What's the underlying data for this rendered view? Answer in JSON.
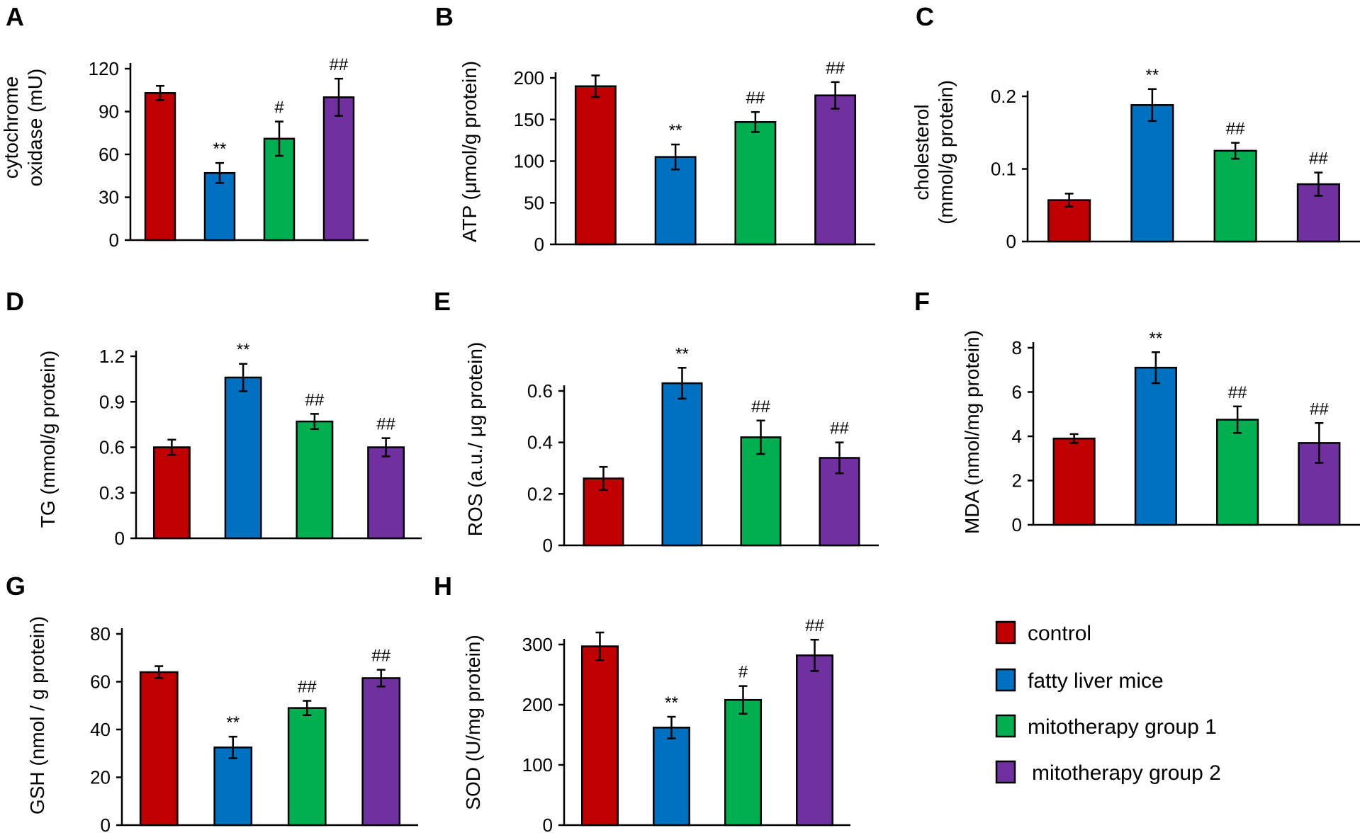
{
  "colors": {
    "control": "#c00000",
    "fatty_liver_mice": "#0070c0",
    "mitotherapy_group_1": "#00b050",
    "mitotherapy_group_2": "#7030a0"
  },
  "legend": {
    "entries": [
      {
        "label": "control",
        "color": "#c00000"
      },
      {
        "label": "fatty liver mice",
        "color": "#0070c0"
      },
      {
        "label": "mitotherapy group  1",
        "color": "#00b050"
      },
      {
        "label": "mitotherapy group  2",
        "color": "#7030a0"
      }
    ]
  },
  "chart_data": [
    {
      "panel": "A",
      "type": "bar",
      "categories": [
        "control",
        "fatty liver mice",
        "mitotherapy group 1",
        "mitotherapy group 2"
      ],
      "ylabel": [
        "cytochrome",
        "oxidase (mU)"
      ],
      "yticks": [
        "0",
        "30",
        "60",
        "90",
        "120"
      ],
      "ylim": [
        0,
        120
      ],
      "values": [
        103,
        47,
        71,
        100
      ],
      "errors": [
        5,
        7,
        12,
        13
      ],
      "significance": [
        "",
        "**",
        "#",
        "##"
      ]
    },
    {
      "panel": "B",
      "type": "bar",
      "categories": [
        "control",
        "fatty liver mice",
        "mitotherapy group 1",
        "mitotherapy group 2"
      ],
      "ylabel": [
        "ATP (μmol/g  protein)"
      ],
      "yticks": [
        "0",
        "50",
        "100",
        "150",
        "200"
      ],
      "ylim": [
        0,
        200
      ],
      "values": [
        190,
        105,
        147,
        179
      ],
      "errors": [
        13,
        15,
        12,
        16
      ],
      "significance": [
        "",
        "**",
        "##",
        "##"
      ]
    },
    {
      "panel": "C",
      "type": "bar",
      "categories": [
        "control",
        "fatty liver mice",
        "mitotherapy group 1",
        "mitotherapy group 2"
      ],
      "ylabel": [
        "cholesterol",
        "(mmol/g  protein)"
      ],
      "yticks": [
        "0",
        "0.1",
        "0.2"
      ],
      "ylim": [
        0,
        0.2
      ],
      "values": [
        0.057,
        0.188,
        0.125,
        0.079
      ],
      "errors": [
        0.009,
        0.022,
        0.011,
        0.016
      ],
      "significance": [
        "",
        "**",
        "##",
        "##"
      ]
    },
    {
      "panel": "D",
      "type": "bar",
      "categories": [
        "control",
        "fatty liver mice",
        "mitotherapy group 1",
        "mitotherapy group 2"
      ],
      "ylabel": [
        "TG (mmol/g  protein)"
      ],
      "yticks": [
        "0",
        "0.3",
        "0.6",
        "0.9",
        "1.2"
      ],
      "ylim": [
        0,
        1.2
      ],
      "values": [
        0.6,
        1.06,
        0.77,
        0.6
      ],
      "errors": [
        0.05,
        0.09,
        0.05,
        0.06
      ],
      "significance": [
        "",
        "**",
        "##",
        "##"
      ]
    },
    {
      "panel": "E",
      "type": "bar",
      "categories": [
        "control",
        "fatty liver mice",
        "mitotherapy group 1",
        "mitotherapy group 2"
      ],
      "ylabel": [
        "ROS (a.u./ μg protein)"
      ],
      "yticks": [
        "0",
        "0.2",
        "0.4",
        "0.6"
      ],
      "ylim": [
        0,
        0.6
      ],
      "values": [
        0.26,
        0.63,
        0.42,
        0.34
      ],
      "errors": [
        0.045,
        0.06,
        0.065,
        0.06
      ],
      "significance": [
        "",
        "**",
        "##",
        "##"
      ]
    },
    {
      "panel": "F",
      "type": "bar",
      "categories": [
        "control",
        "fatty liver mice",
        "mitotherapy group 1",
        "mitotherapy group 2"
      ],
      "ylabel": [
        "MDA (nmol/mg  protein)"
      ],
      "yticks": [
        "0",
        "2",
        "4",
        "6",
        "8"
      ],
      "ylim": [
        0,
        8
      ],
      "values": [
        3.9,
        7.1,
        4.75,
        3.7
      ],
      "errors": [
        0.2,
        0.7,
        0.6,
        0.9
      ],
      "significance": [
        "",
        "**",
        "##",
        "##"
      ]
    },
    {
      "panel": "G",
      "type": "bar",
      "categories": [
        "control",
        "fatty liver mice",
        "mitotherapy group 1",
        "mitotherapy group 2"
      ],
      "ylabel": [
        "GSH (nmol  / g protein)"
      ],
      "yticks": [
        "0",
        "20",
        "40",
        "60",
        "80"
      ],
      "ylim": [
        0,
        80
      ],
      "values": [
        64,
        32.5,
        49,
        61.5
      ],
      "errors": [
        2.5,
        4.5,
        3,
        3.5
      ],
      "significance": [
        "",
        "**",
        "##",
        "##"
      ]
    },
    {
      "panel": "H",
      "type": "bar",
      "categories": [
        "control",
        "fatty liver mice",
        "mitotherapy group 1",
        "mitotherapy group 2"
      ],
      "ylabel": [
        "SOD (U/mg protein)"
      ],
      "yticks": [
        "0",
        "100",
        "200",
        "300"
      ],
      "ylim": [
        0,
        300
      ],
      "values": [
        297,
        162,
        208,
        282
      ],
      "errors": [
        23,
        18,
        23,
        26
      ],
      "significance": [
        "",
        "**",
        "#",
        "##"
      ]
    }
  ]
}
